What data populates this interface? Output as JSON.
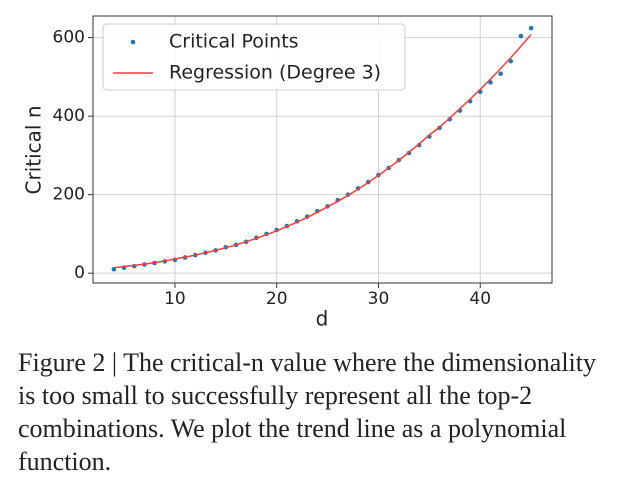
{
  "chart_data": {
    "type": "scatter",
    "xlabel": "d",
    "ylabel": "Critical n",
    "x": [
      4,
      5,
      6,
      7,
      8,
      9,
      10,
      11,
      12,
      13,
      14,
      15,
      16,
      17,
      18,
      19,
      20,
      21,
      22,
      23,
      24,
      25,
      26,
      27,
      28,
      29,
      30,
      31,
      32,
      33,
      34,
      35,
      36,
      37,
      38,
      39,
      40,
      41,
      42,
      43,
      44,
      45
    ],
    "series": [
      {
        "name": "Critical Points",
        "kind": "scatter",
        "color": "#1f77b4",
        "values": [
          10,
          14,
          18,
          22,
          26,
          30,
          34,
          40,
          46,
          52,
          58,
          66,
          72,
          80,
          90,
          100,
          110,
          120,
          132,
          144,
          158,
          170,
          186,
          200,
          216,
          232,
          250,
          268,
          288,
          306,
          326,
          348,
          370,
          392,
          414,
          438,
          462,
          486,
          508,
          540,
          604,
          624
        ]
      },
      {
        "name": "Regression (Degree 3)",
        "kind": "line",
        "color": "#ff3b3b",
        "values": [
          14,
          17,
          20,
          23,
          27,
          31,
          36,
          41,
          46,
          52,
          58,
          65,
          72,
          80,
          89,
          98,
          108,
          119,
          130,
          142,
          155,
          169,
          183,
          198,
          214,
          231,
          249,
          268,
          287,
          308,
          329,
          352,
          372,
          395,
          419,
          443,
          468,
          494,
          521,
          549,
          578,
          608
        ]
      }
    ],
    "xlim": [
      1.95,
      47.05
    ],
    "ylim": [
      -25,
      655
    ],
    "xticks": [
      10,
      20,
      30,
      40
    ],
    "yticks": [
      0,
      200,
      400,
      600
    ],
    "grid": true,
    "legend": "upper left"
  },
  "caption": "Figure 2 | The critical-n value where the dimensionality is too small to successfully represent all the top-2 combinations. We plot the trend line as a polynomial function."
}
